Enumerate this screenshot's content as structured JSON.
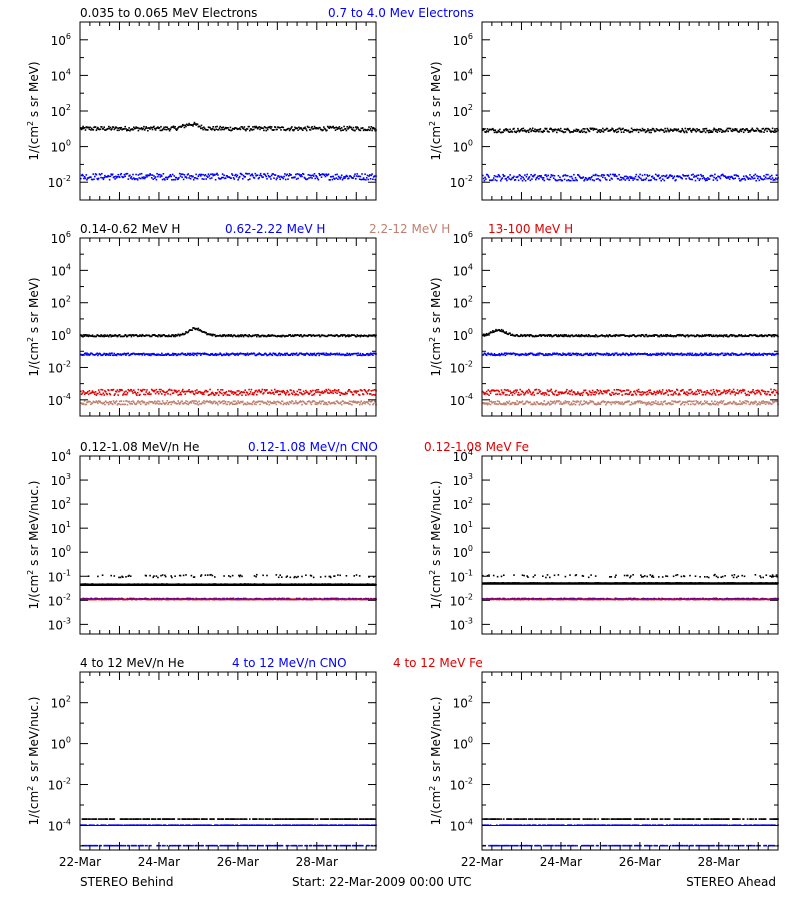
{
  "footer": {
    "left": "STEREO Behind",
    "center": "Start: 22-Mar-2009 00:00 UTC",
    "right": "STEREO Ahead"
  },
  "x_axis": {
    "range_days": [
      0,
      7.5
    ],
    "tick_labels": [
      {
        "day": 0,
        "label": "22-Mar"
      },
      {
        "day": 2,
        "label": "24-Mar"
      },
      {
        "day": 4,
        "label": "26-Mar"
      },
      {
        "day": 6,
        "label": "28-Mar"
      }
    ]
  },
  "rows": [
    {
      "ylabel": "1/(cm² s sr MeV)",
      "ylabel_main": "1/(cm",
      "ylabel_sup": "2",
      "ylabel_rest": " s sr MeV)",
      "ylim_log10": [
        -3,
        7
      ],
      "yticks": [
        {
          "exp": -2,
          "label": "10",
          "sup": "-2"
        },
        {
          "exp": 0,
          "label": "10",
          "sup": "0"
        },
        {
          "exp": 2,
          "label": "10",
          "sup": "2"
        },
        {
          "exp": 4,
          "label": "10",
          "sup": "4"
        },
        {
          "exp": 6,
          "label": "10",
          "sup": "6"
        }
      ],
      "legend": [
        {
          "name": "0.035 to 0.065 MeV Electrons",
          "color": "#000000"
        },
        {
          "name": "0.7 to 4.0 Mev Electrons",
          "color": "#0000ff"
        }
      ],
      "panels": [
        {
          "series": [
            {
              "color": "#000000",
              "level_log10": 1.0,
              "spread": 0.12,
              "bump_day": 2.8,
              "bump": 0.25
            },
            {
              "color": "#0000ff",
              "level_log10": -1.7,
              "spread": 0.18,
              "bump_day": null,
              "bump": 0
            }
          ]
        },
        {
          "series": [
            {
              "color": "#000000",
              "level_log10": 0.9,
              "spread": 0.12,
              "bump_day": null,
              "bump": 0
            },
            {
              "color": "#0000ff",
              "level_log10": -1.75,
              "spread": 0.18,
              "bump_day": null,
              "bump": 0
            }
          ]
        }
      ]
    },
    {
      "ylabel": "1/(cm² s sr MeV)",
      "ylabel_main": "1/(cm",
      "ylabel_sup": "2",
      "ylabel_rest": " s sr MeV)",
      "ylim_log10": [
        -5,
        6
      ],
      "yticks": [
        {
          "exp": -4,
          "label": "10",
          "sup": "-4"
        },
        {
          "exp": -2,
          "label": "10",
          "sup": "-2"
        },
        {
          "exp": 0,
          "label": "10",
          "sup": "0"
        },
        {
          "exp": 2,
          "label": "10",
          "sup": "2"
        },
        {
          "exp": 4,
          "label": "10",
          "sup": "4"
        },
        {
          "exp": 6,
          "label": "10",
          "sup": "6"
        }
      ],
      "legend": [
        {
          "name": "0.14-0.62 MeV H",
          "color": "#000000"
        },
        {
          "name": "0.62-2.22 MeV H",
          "color": "#0000ff"
        },
        {
          "name": "2.2-12 MeV H",
          "color": "#c08070"
        },
        {
          "name": "13-100 MeV H",
          "color": "#e00000"
        }
      ],
      "panels": [
        {
          "series": [
            {
              "color": "#000000",
              "level_log10": -0.05,
              "spread": 0.06,
              "bump_day": 2.9,
              "bump": 0.45
            },
            {
              "color": "#0000ff",
              "level_log10": -1.2,
              "spread": 0.07,
              "bump_day": null,
              "bump": 0
            },
            {
              "color": "#c08070",
              "level_log10": -4.2,
              "spread": 0.12,
              "bump_day": null,
              "bump": 0
            },
            {
              "color": "#e00000",
              "level_log10": -3.55,
              "spread": 0.18,
              "bump_day": null,
              "bump": 0
            }
          ]
        },
        {
          "series": [
            {
              "color": "#000000",
              "level_log10": -0.05,
              "spread": 0.06,
              "bump_day": 0.4,
              "bump": 0.35
            },
            {
              "color": "#0000ff",
              "level_log10": -1.2,
              "spread": 0.07,
              "bump_day": null,
              "bump": 0
            },
            {
              "color": "#c08070",
              "level_log10": -4.2,
              "spread": 0.12,
              "bump_day": null,
              "bump": 0
            },
            {
              "color": "#e00000",
              "level_log10": -3.55,
              "spread": 0.18,
              "bump_day": null,
              "bump": 0
            }
          ]
        }
      ]
    },
    {
      "ylabel": "1/(cm² s sr MeV/nuc.)",
      "ylabel_main": "1/(cm",
      "ylabel_sup": "2",
      "ylabel_rest": " s sr MeV/nuc.)",
      "ylim_log10": [
        -3.4,
        4
      ],
      "yticks": [
        {
          "exp": -3,
          "label": "10",
          "sup": "-3"
        },
        {
          "exp": -2,
          "label": "10",
          "sup": "-2"
        },
        {
          "exp": -1,
          "label": "10",
          "sup": "-1"
        },
        {
          "exp": 0,
          "label": "10",
          "sup": "0"
        },
        {
          "exp": 1,
          "label": "10",
          "sup": "1"
        },
        {
          "exp": 2,
          "label": "10",
          "sup": "2"
        },
        {
          "exp": 3,
          "label": "10",
          "sup": "3"
        },
        {
          "exp": 4,
          "label": "10",
          "sup": "4"
        }
      ],
      "legend": [
        {
          "name": "0.12-1.08 MeV/n He",
          "color": "#000000"
        },
        {
          "name": "0.12-1.08 MeV/n CNO",
          "color": "#0000ff"
        },
        {
          "name": "0.12-1.08 MeV Fe",
          "color": "#e00000"
        }
      ],
      "panels": [
        {
          "series": [
            {
              "color": "#000000",
              "level_log10": -1.35,
              "spread": 0.02,
              "bump_day": null,
              "bump": 0
            },
            {
              "color": "#000000",
              "level_log10": -1.0,
              "spread": 0.06,
              "bump_day": null,
              "bump": 0
            },
            {
              "color": "#0000ff",
              "level_log10": -1.95,
              "spread": 0.02,
              "bump_day": null,
              "bump": 0
            },
            {
              "color": "#e00000",
              "level_log10": -1.97,
              "spread": 0.01,
              "bump_day": null,
              "bump": 0
            }
          ]
        },
        {
          "series": [
            {
              "color": "#000000",
              "level_log10": -1.3,
              "spread": 0.02,
              "bump_day": null,
              "bump": 0
            },
            {
              "color": "#000000",
              "level_log10": -1.0,
              "spread": 0.06,
              "bump_day": null,
              "bump": 0
            },
            {
              "color": "#0000ff",
              "level_log10": -1.95,
              "spread": 0.02,
              "bump_day": null,
              "bump": 0
            },
            {
              "color": "#e00000",
              "level_log10": -1.97,
              "spread": 0.01,
              "bump_day": null,
              "bump": 0
            }
          ]
        }
      ]
    },
    {
      "ylabel": "1/(cm² s sr MeV/nuc.)",
      "ylabel_main": "1/(cm",
      "ylabel_sup": "2",
      "ylabel_rest": " s sr MeV/nuc.)",
      "ylim_log10": [
        -5.2,
        3.5
      ],
      "yticks": [
        {
          "exp": -4,
          "label": "10",
          "sup": "-4"
        },
        {
          "exp": -2,
          "label": "10",
          "sup": "-2"
        },
        {
          "exp": 0,
          "label": "10",
          "sup": "0"
        },
        {
          "exp": 2,
          "label": "10",
          "sup": "2"
        }
      ],
      "legend": [
        {
          "name": "4 to 12 MeV/n He",
          "color": "#000000"
        },
        {
          "name": "4 to 12 MeV/n CNO",
          "color": "#0000ff"
        },
        {
          "name": "4 to 12 MeV Fe",
          "color": "#e00000"
        }
      ],
      "panels": [
        {
          "series": [
            {
              "color": "#0000ff",
              "level_log10": -4.0,
              "spread": 0.0,
              "bump_day": null,
              "bump": 0
            },
            {
              "color": "#000000",
              "level_log10": -3.7,
              "spread": 0.0,
              "bump_day": null,
              "bump": 0
            },
            {
              "color": "#0000ff",
              "level_log10": -5.0,
              "spread": 0.0,
              "bump_day": null,
              "bump": 0
            }
          ]
        },
        {
          "series": [
            {
              "color": "#0000ff",
              "level_log10": -4.0,
              "spread": 0.0,
              "bump_day": null,
              "bump": 0
            },
            {
              "color": "#000000",
              "level_log10": -3.7,
              "spread": 0.0,
              "bump_day": null,
              "bump": 0
            },
            {
              "color": "#0000ff",
              "level_log10": -5.0,
              "spread": 0.0,
              "bump_day": null,
              "bump": 0
            }
          ]
        }
      ]
    }
  ]
}
